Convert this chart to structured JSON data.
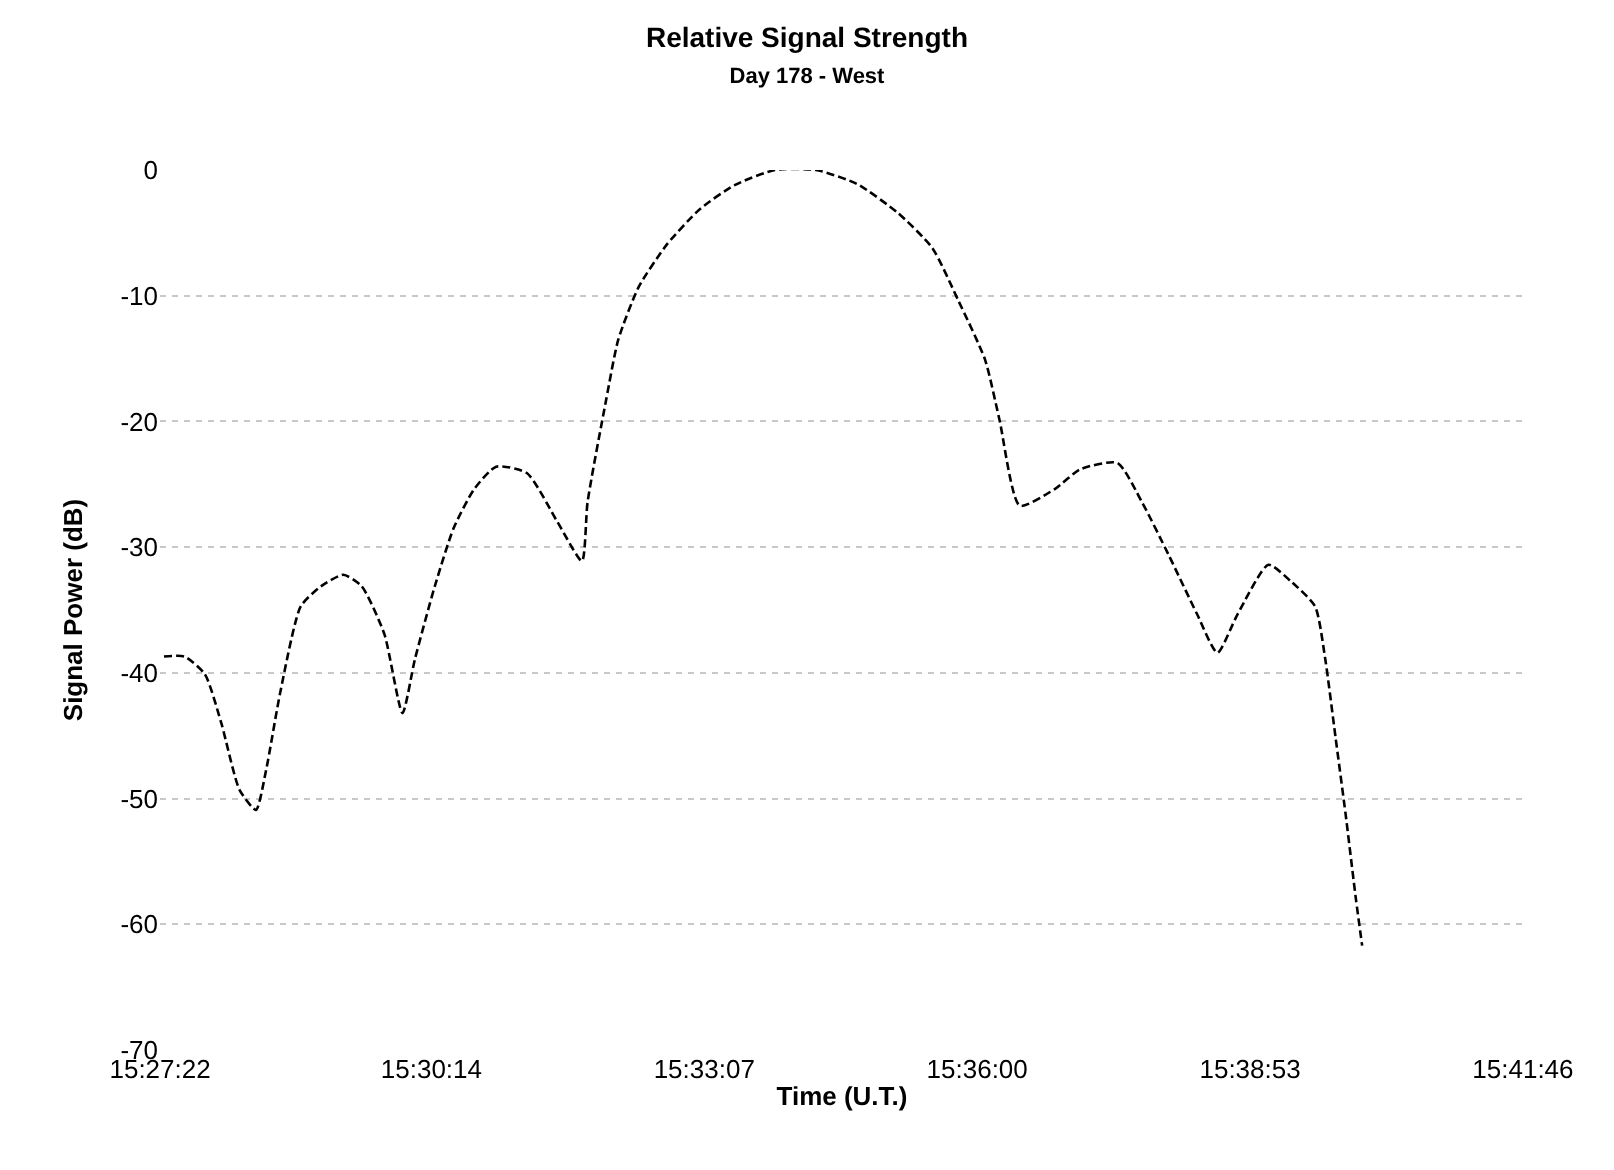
{
  "chart_data": {
    "type": "line",
    "title": "Relative Signal Strength",
    "subtitle": "Day 178 - West",
    "xlabel": "Time (U.T.)",
    "ylabel": "Signal Power (dB)",
    "x": [
      15.4568,
      15.4604,
      15.464,
      15.4669,
      15.4701,
      15.473,
      15.4748,
      15.4773,
      15.4809,
      15.4845,
      15.4884,
      15.4916,
      15.4956,
      15.4988,
      15.501,
      15.5045,
      15.5078,
      15.5114,
      15.5153,
      15.5207,
      15.5261,
      15.5304,
      15.5314,
      15.5347,
      15.5368,
      15.5404,
      15.5454,
      15.5512,
      15.5573,
      15.5644,
      15.5716,
      15.5788,
      15.586,
      15.5921,
      15.5967,
      15.6014,
      15.6039,
      15.6075,
      15.6136,
      15.6182,
      15.6247,
      15.629,
      15.6337,
      15.6387,
      15.6423,
      15.6459,
      15.6513,
      15.6552,
      15.6595,
      15.6613,
      15.6631,
      15.6649,
      15.6667,
      15.6678
    ],
    "series": [
      {
        "color": "#000000",
        "values": [
          -38.7,
          -38.7,
          -40.1,
          -44,
          -49.3,
          -50.9,
          -47.7,
          -41.5,
          -34.7,
          -33.1,
          -32.2,
          -33.1,
          -36.9,
          -43.2,
          -38.9,
          -33.1,
          -28.5,
          -25.4,
          -23.6,
          -24.1,
          -28,
          -31.1,
          -26.4,
          -18.2,
          -13.5,
          -9.3,
          -5.9,
          -3.1,
          -1.2,
          0,
          0,
          -1.1,
          -3.4,
          -6.2,
          -10.4,
          -15.1,
          -19.8,
          -26.7,
          -25.4,
          -23.8,
          -23.3,
          -26.4,
          -30.6,
          -35.3,
          -38.4,
          -35.3,
          -31.4,
          -32.7,
          -34.7,
          -38.9,
          -45.1,
          -51.3,
          -58,
          -61.7
        ]
      }
    ],
    "xlim": [
      15.4561,
      15.6963
    ],
    "xticks": [
      {
        "value": 15.45611,
        "label": "15:27:22"
      },
      {
        "value": 15.50389,
        "label": "15:30:14"
      },
      {
        "value": 15.55194,
        "label": "15:33:07"
      },
      {
        "value": 15.6,
        "label": "15:36:00"
      },
      {
        "value": 15.64806,
        "label": "15:38:53"
      },
      {
        "value": 15.69611,
        "label": "15:41:46"
      }
    ],
    "ylim": [
      -70,
      0
    ],
    "yticks": [
      0,
      -10,
      -20,
      -30,
      -40,
      -50,
      -60,
      -70
    ],
    "grid": "y",
    "marker": "none",
    "line_style": "dashed"
  }
}
